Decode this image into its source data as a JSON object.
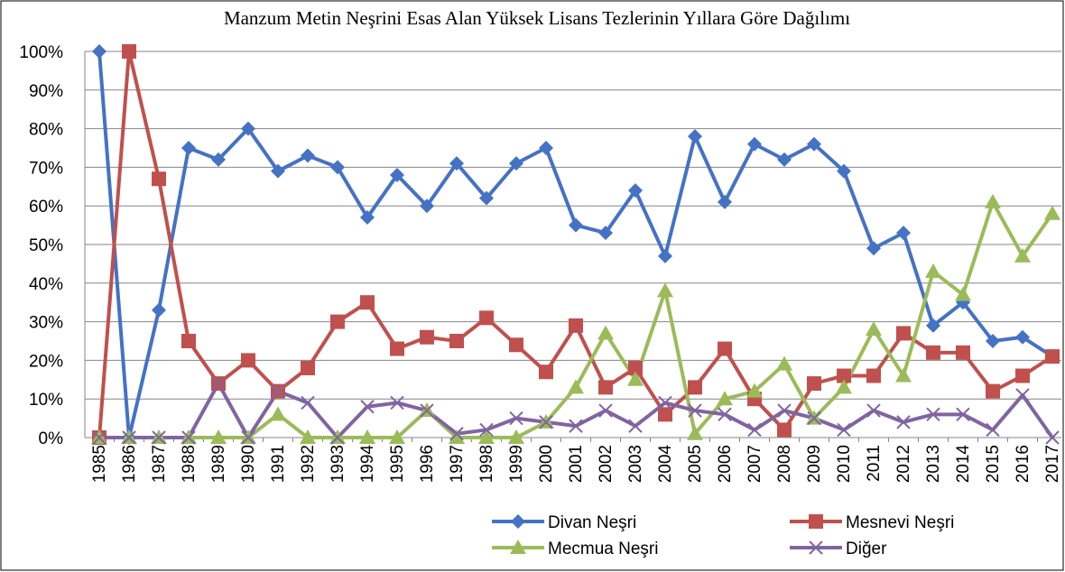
{
  "chart_data": {
    "type": "line",
    "title": "Manzum Metin Neşrini Esas Alan Yüksek Lisans Tezlerinin Yıllara Göre Dağılımı",
    "categories": [
      "1985",
      "1986",
      "1987",
      "1988",
      "1989",
      "1990",
      "1991",
      "1992",
      "1993",
      "1994",
      "1995",
      "1996",
      "1997",
      "1998",
      "1999",
      "2000",
      "2001",
      "2002",
      "2003",
      "2004",
      "2005",
      "2006",
      "2007",
      "2008",
      "2009",
      "2010",
      "2011",
      "2012",
      "2013",
      "2014",
      "2015",
      "2016",
      "2017"
    ],
    "series": [
      {
        "name": "Divan Neşri",
        "color": "#4472c4",
        "marker": "diamond",
        "values": [
          100,
          0,
          33,
          75,
          72,
          80,
          69,
          73,
          70,
          57,
          68,
          60,
          71,
          62,
          71,
          75,
          55,
          53,
          64,
          47,
          78,
          61,
          76,
          72,
          76,
          69,
          49,
          53,
          29,
          35,
          25,
          26,
          21
        ]
      },
      {
        "name": "Mesnevi Neşri",
        "color": "#c0504d",
        "marker": "square",
        "values": [
          0,
          100,
          67,
          25,
          14,
          20,
          12,
          18,
          30,
          35,
          23,
          26,
          25,
          31,
          24,
          17,
          29,
          13,
          18,
          6,
          13,
          23,
          10,
          2,
          14,
          16,
          16,
          27,
          22,
          22,
          12,
          16,
          21
        ]
      },
      {
        "name": "Mecmua Neşri",
        "color": "#9bbb59",
        "marker": "triangle",
        "values": [
          0,
          0,
          0,
          0,
          0,
          0,
          6,
          0,
          0,
          0,
          0,
          7,
          0,
          0,
          0,
          4,
          13,
          27,
          15,
          38,
          1,
          10,
          12,
          19,
          5,
          13,
          28,
          16,
          43,
          37,
          61,
          47,
          58
        ]
      },
      {
        "name": "Diğer",
        "color": "#8064a2",
        "marker": "x",
        "values": [
          0,
          0,
          0,
          0,
          14,
          0,
          12,
          9,
          0,
          8,
          9,
          7,
          1,
          2,
          5,
          4,
          3,
          7,
          3,
          9,
          7,
          6,
          2,
          7,
          5,
          2,
          7,
          4,
          6,
          6,
          2,
          11,
          0
        ]
      }
    ],
    "ylim": [
      0,
      100
    ],
    "yticks": [
      {
        "value": 0,
        "label": "0%"
      },
      {
        "value": 10,
        "label": "10%"
      },
      {
        "value": 20,
        "label": "20%"
      },
      {
        "value": 30,
        "label": "30%"
      },
      {
        "value": 40,
        "label": "40%"
      },
      {
        "value": 50,
        "label": "50%"
      },
      {
        "value": 60,
        "label": "60%"
      },
      {
        "value": 70,
        "label": "70%"
      },
      {
        "value": 80,
        "label": "80%"
      },
      {
        "value": 90,
        "label": "90%"
      },
      {
        "value": 100,
        "label": "100%"
      }
    ],
    "grid": true,
    "legend": "bottom"
  }
}
